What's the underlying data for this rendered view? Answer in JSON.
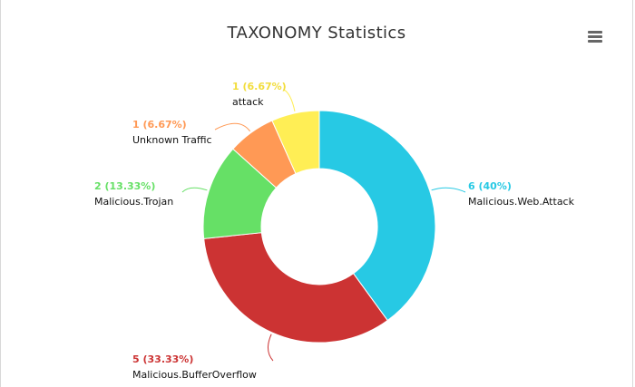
{
  "chart_data": {
    "type": "pie",
    "title": "TAXONOMY Statistics",
    "donut": true,
    "slices": [
      {
        "name": "Malicious.Web.Attack",
        "value": 6,
        "label": "6 (40%)",
        "color": "#27c9e4"
      },
      {
        "name": "Malicious.BufferOverflow",
        "value": 5,
        "label": "5 (33.33%)",
        "color": "#cc3333"
      },
      {
        "name": "Malicious.Trojan",
        "value": 2,
        "label": "2 (13.33%)",
        "color": "#66e066"
      },
      {
        "name": "Unknown Traffic",
        "value": 1,
        "label": "1 (6.67%)",
        "color": "#ff9955"
      },
      {
        "name": "attack",
        "value": 1,
        "label": "1 (6.67%)",
        "color": "#ffee55"
      }
    ]
  },
  "menu": {
    "icon": "hamburger-menu-icon"
  }
}
